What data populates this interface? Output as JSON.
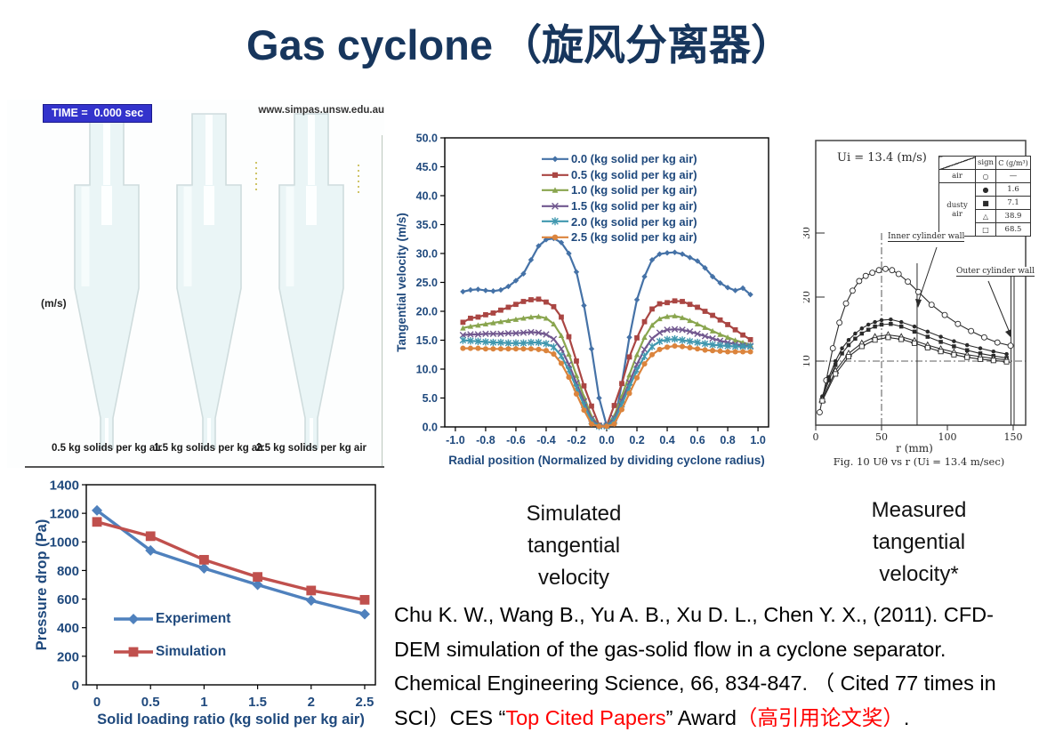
{
  "slide": {
    "title_en": "Gas cyclone",
    "title_cjk": "（旋风分离器）"
  },
  "colors": {
    "title": "#17365D",
    "axis_text": "#1F497D",
    "red_text": "#FF0000",
    "time_box_bg": "#3333CC",
    "cyclone_fill": "#EAF5F6",
    "cyclone_edge": "#CFDCDD",
    "scan_ink": "#2B2B2B"
  },
  "simulation_panel": {
    "time_label": "TIME =  0.000 sec",
    "url": "www.simpas.unsw.edu.au",
    "unit_label": "(m/s)",
    "cyclone_labels": [
      "0.5 kg solids per kg air",
      "1.5 kg solids per kg air",
      "2.5 kg solids per kg air"
    ]
  },
  "captions": {
    "simulated": "Simulated tangential velocity",
    "measured": "Measured tangential velocity*"
  },
  "citation": {
    "segments": [
      {
        "text": "Chu K. W., Wang B., Yu A. B., Xu D. L., Chen Y. X., (2011). CFD-DEM simulation of the gas-solid flow in a cyclone separator. Chemical Engineering Science, 66, 834-847.  （ Cited 77 times in SCI）CES “",
        "color": "#000000"
      },
      {
        "text": "Top Cited Papers",
        "color": "#FF0000"
      },
      {
        "text": "” Award",
        "color": "#000000"
      },
      {
        "text": "（高引用论文奖）",
        "color": "#FF0000"
      },
      {
        "text": ".",
        "color": "#000000"
      }
    ]
  },
  "chart_data": [
    {
      "id": "tangential",
      "type": "line",
      "title": "",
      "xlabel": "Radial position (Normalized by dividing cyclone radius)",
      "ylabel": "Tangential velocity (m/s)",
      "xlim": [
        -1.0,
        1.0
      ],
      "ylim": [
        0,
        50
      ],
      "xticks": [
        -1.0,
        -0.8,
        -0.6,
        -0.4,
        -0.2,
        0.0,
        0.2,
        0.4,
        0.6,
        0.8,
        1.0
      ],
      "yticks": [
        0,
        5,
        10,
        15,
        20,
        25,
        30,
        35,
        40,
        45,
        50
      ],
      "grid": false,
      "legend_position": "top-center-inside",
      "x": [
        -0.95,
        -0.9,
        -0.85,
        -0.8,
        -0.75,
        -0.7,
        -0.65,
        -0.6,
        -0.55,
        -0.5,
        -0.45,
        -0.4,
        -0.35,
        -0.3,
        -0.25,
        -0.2,
        -0.15,
        -0.1,
        -0.05,
        0,
        0.05,
        0.1,
        0.15,
        0.2,
        0.25,
        0.3,
        0.35,
        0.4,
        0.45,
        0.5,
        0.55,
        0.6,
        0.65,
        0.7,
        0.75,
        0.8,
        0.85,
        0.9,
        0.95
      ],
      "series": [
        {
          "name": "0.0 (kg solid per kg air)",
          "color": "#4572A7",
          "marker": "diamond",
          "values": [
            23.4,
            23.7,
            23.8,
            23.6,
            23.5,
            23.7,
            24.3,
            25.3,
            26.5,
            28.9,
            31.3,
            32.4,
            32.6,
            31.9,
            30.0,
            26.8,
            21.0,
            13.5,
            5.0,
            0.2,
            0.5,
            7.5,
            15.5,
            22.0,
            26.0,
            28.9,
            29.9,
            30.1,
            30.2,
            29.9,
            29.3,
            28.7,
            27.5,
            26.0,
            24.9,
            24.1,
            23.6,
            24.0,
            22.9
          ]
        },
        {
          "name": "0.5 (kg solid per kg air)",
          "color": "#AA4643",
          "marker": "square",
          "values": [
            18.1,
            18.8,
            19.0,
            19.4,
            19.7,
            20.2,
            20.7,
            21.2,
            21.7,
            22.0,
            22.1,
            21.6,
            20.8,
            19.0,
            15.6,
            11.4,
            7.1,
            3.6,
            0.3,
            0.2,
            3.7,
            7.5,
            12.1,
            15.4,
            18.2,
            20.4,
            21.3,
            21.5,
            21.8,
            21.7,
            21.2,
            20.7,
            20.0,
            19.3,
            18.5,
            17.7,
            16.8,
            15.9,
            15.1
          ]
        },
        {
          "name": "1.0 (kg solid per kg air)",
          "color": "#89A54E",
          "marker": "triangle",
          "values": [
            17.1,
            17.4,
            17.6,
            17.8,
            18.0,
            18.2,
            18.4,
            18.6,
            18.8,
            19.0,
            19.1,
            18.8,
            17.8,
            15.8,
            12.6,
            8.9,
            5.2,
            1.8,
            0.2,
            0.2,
            1.9,
            5.3,
            9.0,
            12.5,
            15.5,
            17.6,
            18.7,
            19.1,
            19.2,
            18.9,
            18.4,
            17.8,
            17.2,
            16.6,
            16.0,
            15.5,
            15.0,
            14.6,
            14.2
          ]
        },
        {
          "name": "1.5 (kg solid per kg air)",
          "color": "#71588F",
          "marker": "x",
          "values": [
            15.9,
            16.0,
            16.0,
            16.1,
            16.1,
            16.1,
            16.2,
            16.2,
            16.3,
            16.4,
            16.3,
            16.0,
            15.2,
            13.5,
            10.8,
            7.6,
            4.4,
            1.4,
            0.2,
            0.2,
            1.5,
            4.5,
            7.7,
            10.8,
            13.4,
            15.3,
            16.3,
            16.8,
            16.9,
            16.8,
            16.5,
            16.1,
            15.7,
            15.3,
            14.9,
            14.6,
            14.3,
            14.1,
            14.0
          ]
        },
        {
          "name": "2.0 (kg solid per kg air)",
          "color": "#4198AF",
          "marker": "star",
          "values": [
            15.0,
            14.9,
            14.8,
            14.7,
            14.6,
            14.6,
            14.5,
            14.5,
            14.5,
            14.6,
            14.6,
            14.4,
            13.8,
            12.3,
            9.8,
            6.8,
            3.8,
            1.0,
            0.1,
            0.1,
            1.1,
            3.9,
            6.9,
            9.8,
            12.2,
            13.9,
            14.8,
            15.1,
            15.2,
            15.0,
            14.8,
            14.6,
            14.4,
            14.2,
            14.1,
            14.0,
            13.9,
            13.9,
            13.9
          ]
        },
        {
          "name": "2.5 (kg solid per kg air)",
          "color": "#DB843D",
          "marker": "circle",
          "values": [
            13.6,
            13.6,
            13.6,
            13.5,
            13.5,
            13.5,
            13.5,
            13.5,
            13.5,
            13.5,
            13.4,
            13.2,
            12.6,
            11.0,
            8.6,
            5.7,
            2.9,
            0.5,
            0.1,
            0.1,
            0.5,
            3.0,
            5.8,
            8.5,
            10.9,
            12.5,
            13.4,
            13.8,
            14.0,
            13.9,
            13.7,
            13.5,
            13.3,
            13.2,
            13.1,
            13.0,
            13.0,
            13.0,
            13.0
          ]
        }
      ]
    },
    {
      "id": "measured",
      "type": "line",
      "style": "scanned",
      "header_label": "Ui = 13.4 (m/s)",
      "xlabel": "r (mm)",
      "ylabel": "Uθ (m/s)",
      "xlim": [
        0,
        160
      ],
      "ylim": [
        0,
        44
      ],
      "xticks": [
        0,
        50,
        100,
        150
      ],
      "yticks": [
        10,
        20,
        30
      ],
      "caption": "Fig. 10  Uθ vs r (Ui = 13.4 m/sec)",
      "annotations": {
        "inner": "Inner cylinder wall",
        "outer": "Outer cylinder wall"
      },
      "legend_table": {
        "col_headers": [
          "",
          "sign",
          "C (g/m³)"
        ],
        "rows": [
          {
            "label": "air",
            "sign": "○",
            "value": "—"
          },
          {
            "label": "dusty air",
            "sign": "●",
            "value": "1.6"
          },
          {
            "label": "",
            "sign": "■",
            "value": "7.1"
          },
          {
            "label": "",
            "sign": "△",
            "value": "38.9"
          },
          {
            "label": "",
            "sign": "□",
            "value": "68.5"
          }
        ]
      },
      "series": [
        {
          "name": "air",
          "marker": "circle-open",
          "x": [
            3,
            8,
            13,
            18,
            23,
            28,
            33,
            38,
            43,
            48,
            53,
            58,
            63,
            70,
            78,
            88,
            98,
            108,
            118,
            128,
            138,
            148
          ],
          "y": [
            2,
            7,
            12,
            16,
            19,
            21,
            22.5,
            23.3,
            23.8,
            24.2,
            24.4,
            24.2,
            23.6,
            22.4,
            20.8,
            18.8,
            17.2,
            15.8,
            14.7,
            13.7,
            12.9,
            12.4
          ]
        },
        {
          "name": "dusty air C=1.6",
          "marker": "dot",
          "x": [
            5,
            10,
            15,
            20,
            25,
            30,
            35,
            40,
            45,
            50,
            57,
            65,
            75,
            85,
            95,
            105,
            115,
            125,
            135,
            145
          ],
          "y": [
            4.5,
            7.5,
            10,
            12,
            13.3,
            14.3,
            15.1,
            15.7,
            16.1,
            16.4,
            16.5,
            16.1,
            15.4,
            14.6,
            13.8,
            13.1,
            12.5,
            12.0,
            11.5,
            11.1
          ]
        },
        {
          "name": "dusty air C=7.1",
          "marker": "square-small",
          "x": [
            5,
            10,
            15,
            20,
            25,
            30,
            35,
            40,
            45,
            50,
            57,
            65,
            75,
            85,
            95,
            105,
            115,
            125,
            135,
            145
          ],
          "y": [
            4.2,
            7.0,
            9.4,
            11.2,
            12.5,
            13.5,
            14.3,
            14.9,
            15.4,
            15.7,
            15.8,
            15.4,
            14.6,
            13.8,
            13.0,
            12.3,
            11.7,
            11.2,
            10.8,
            10.5
          ]
        },
        {
          "name": "dusty air C=38.9",
          "marker": "triangle-open",
          "x": [
            5,
            15,
            25,
            35,
            45,
            55,
            65,
            75,
            85,
            95,
            105,
            115,
            125,
            135,
            145
          ],
          "y": [
            4.0,
            8.5,
            11.2,
            12.8,
            13.8,
            14.1,
            13.8,
            13.2,
            12.5,
            11.9,
            11.4,
            11.0,
            10.7,
            10.4,
            10.2
          ]
        },
        {
          "name": "dusty air C=68.5",
          "marker": "square-open",
          "x": [
            5,
            15,
            25,
            35,
            45,
            55,
            65,
            75,
            85,
            95,
            105,
            115,
            125,
            135,
            145
          ],
          "y": [
            3.8,
            8.0,
            10.7,
            12.3,
            13.3,
            13.7,
            13.4,
            12.8,
            12.1,
            11.5,
            11.0,
            10.6,
            10.3,
            10.1,
            9.9
          ]
        }
      ]
    },
    {
      "id": "pressure",
      "type": "line",
      "xlabel": "Solid loading ratio (kg solid per kg air)",
      "ylabel": "Pressure drop (Pa)",
      "xlim": [
        0,
        2.5
      ],
      "ylim": [
        0,
        1400
      ],
      "xticks": [
        0,
        0.5,
        1,
        1.5,
        2,
        2.5
      ],
      "yticks": [
        0,
        200,
        400,
        600,
        800,
        1000,
        1200,
        1400
      ],
      "grid": false,
      "legend_position": "inside-left",
      "x": [
        0,
        0.5,
        1,
        1.5,
        2,
        2.5
      ],
      "series": [
        {
          "name": "Experiment",
          "color": "#4F81BD",
          "marker": "diamond",
          "values": [
            1220,
            940,
            815,
            700,
            590,
            495
          ]
        },
        {
          "name": "Simulation",
          "color": "#C0504D",
          "marker": "square",
          "values": [
            1140,
            1040,
            875,
            755,
            660,
            595
          ]
        }
      ]
    }
  ]
}
